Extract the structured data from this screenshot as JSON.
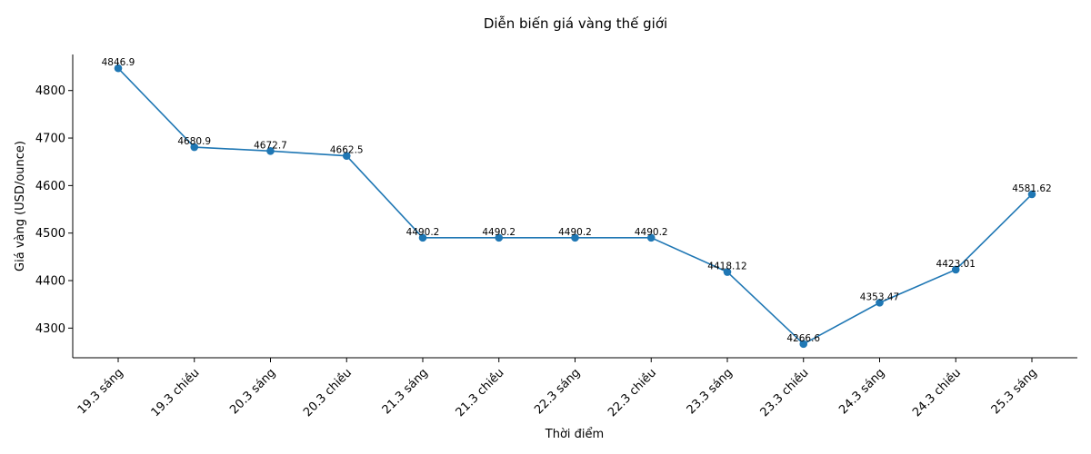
{
  "chart_data": {
    "type": "line",
    "title": "Diễn biến giá vàng thế giới",
    "xlabel": "Thời điểm",
    "ylabel": "Giá vàng (USD/ounce)",
    "categories": [
      "19.3 sáng",
      "19.3 chiều",
      "20.3 sáng",
      "20.3 chiều",
      "21.3 sáng",
      "21.3 chiều",
      "22.3 sáng",
      "22.3 chiều",
      "23.3 sáng",
      "23.3 chiều",
      "24.3 sáng",
      "24.3 chiều",
      "25.3 sáng"
    ],
    "values": [
      4846.9,
      4680.9,
      4672.7,
      4662.5,
      4490.2,
      4490.2,
      4490.2,
      4490.2,
      4418.12,
      4266.6,
      4353.47,
      4423.01,
      4581.62
    ],
    "value_labels": [
      "4846.9",
      "4680.9",
      "4672.7",
      "4662.5",
      "4490.2",
      "4490.2",
      "4490.2",
      "4490.2",
      "4418.12",
      "4266.6",
      "4353.47",
      "4423.01",
      "4581.62"
    ],
    "yticks": [
      4300,
      4400,
      4500,
      4600,
      4700,
      4800
    ],
    "ylim": [
      4237.6,
      4875.9
    ],
    "line_color": "#1f77b4",
    "grid": false,
    "legend": "none"
  }
}
